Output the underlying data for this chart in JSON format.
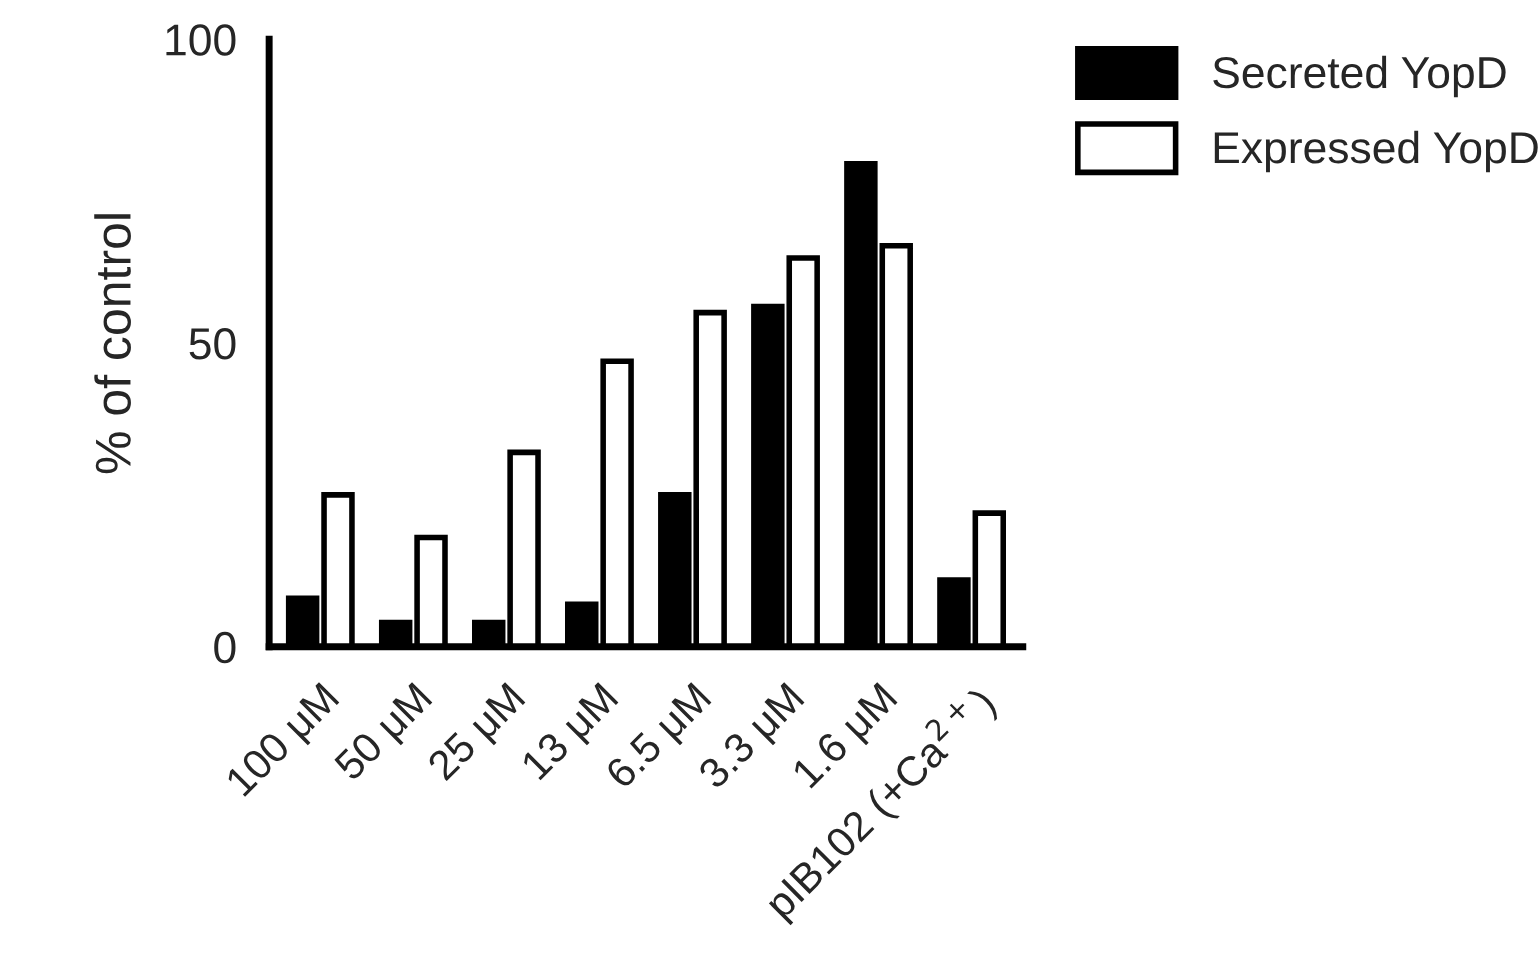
{
  "chart_data": {
    "type": "bar",
    "ylabel": "% of control",
    "categories": [
      "100 μM",
      "50 μM",
      "25 μM",
      "13 μM",
      "6.5 μM",
      "3.3 μM",
      "1.6 μM",
      "pIB102 (+Ca$^{2+}$)"
    ],
    "series": [
      {
        "name": "Secreted YopD",
        "color": "#000000",
        "values": [
          8,
          4,
          4,
          7,
          25,
          56,
          79.5,
          11
        ]
      },
      {
        "name": "Expressed YopD",
        "color": "#ffffff",
        "values": [
          25,
          18,
          32,
          47,
          55,
          64,
          66,
          22
        ]
      }
    ],
    "ylim": [
      0,
      100
    ],
    "yticks": [
      0,
      50,
      100
    ],
    "grid": false,
    "legend": "top right"
  }
}
